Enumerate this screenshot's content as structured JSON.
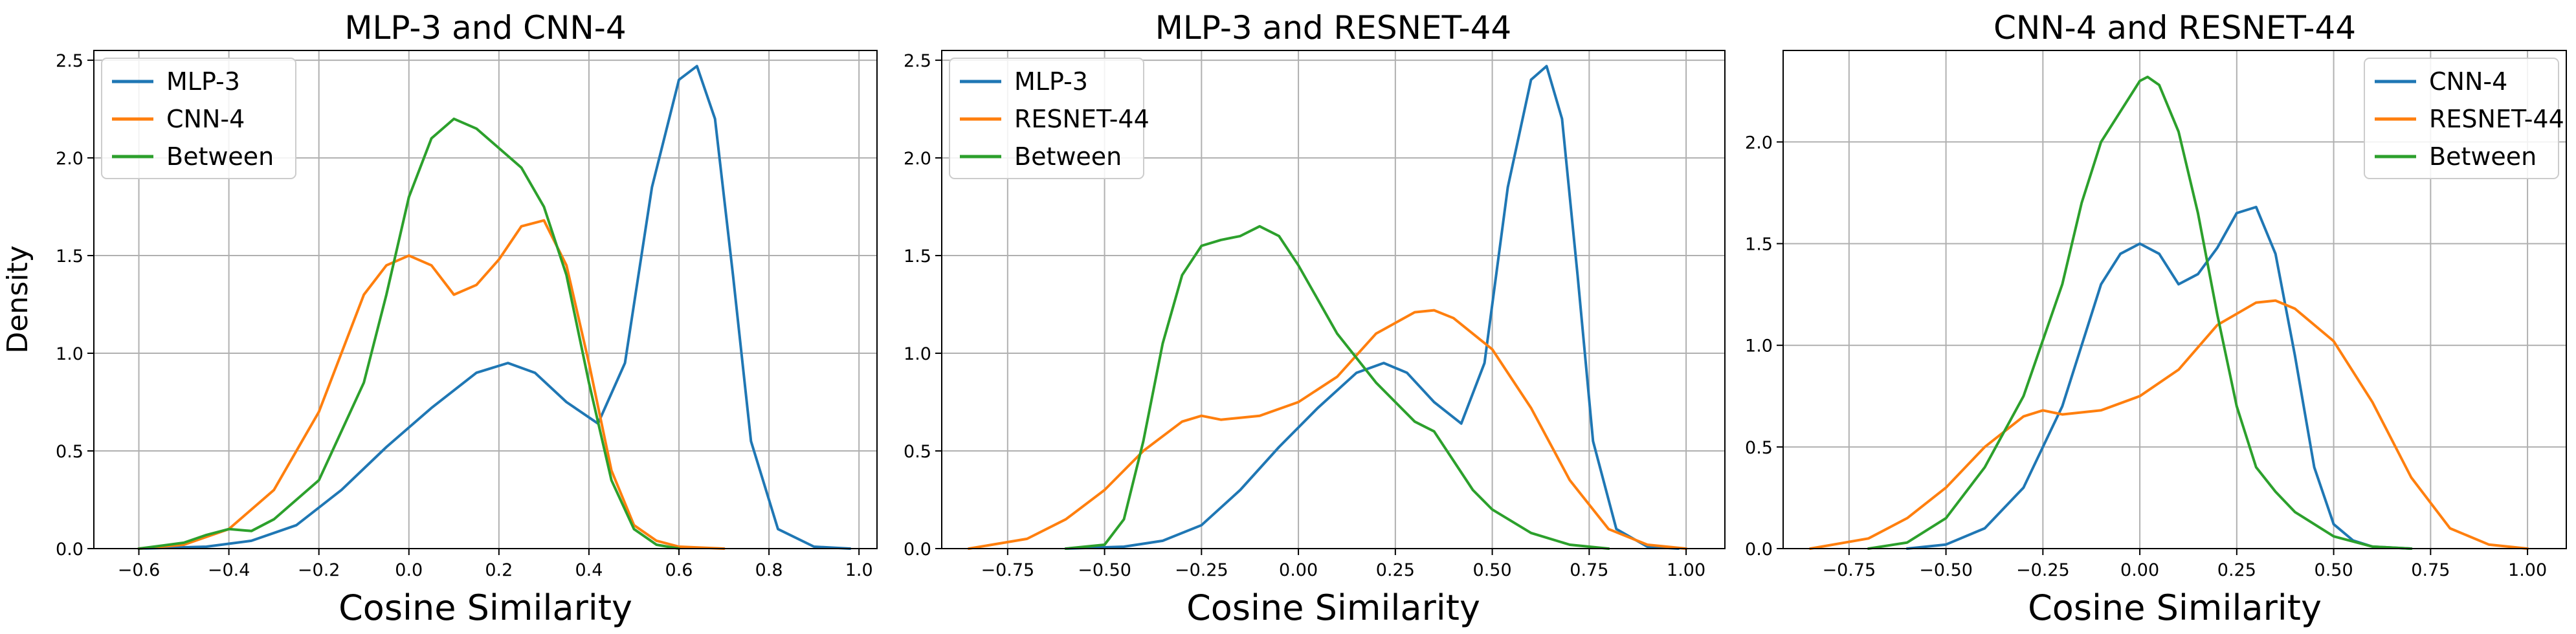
{
  "colors": {
    "blue": "#1f77b4",
    "orange": "#ff7f0e",
    "green": "#2ca02c"
  },
  "chart_data": [
    {
      "type": "line",
      "title": "MLP-3 and CNN-4",
      "xlabel": "Cosine Similarity",
      "ylabel": "Density",
      "xlim": [
        -0.7,
        1.04
      ],
      "ylim": [
        0,
        2.55
      ],
      "xticks": [
        -0.6,
        -0.4,
        -0.2,
        0.0,
        0.2,
        0.4,
        0.6,
        0.8,
        1.0
      ],
      "xtick_labels": [
        "−0.6",
        "−0.4",
        "−0.2",
        "0.0",
        "0.2",
        "0.4",
        "0.6",
        "0.8",
        "1.0"
      ],
      "yticks": [
        0.0,
        0.5,
        1.0,
        1.5,
        2.0,
        2.5
      ],
      "ytick_labels": [
        "0.0",
        "0.5",
        "1.0",
        "1.5",
        "2.0",
        "2.5"
      ],
      "grid": true,
      "legend_position": "top-left",
      "series": [
        {
          "name": "MLP-3",
          "color": "#1f77b4",
          "x": [
            -0.6,
            -0.45,
            -0.35,
            -0.25,
            -0.15,
            -0.05,
            0.05,
            0.15,
            0.22,
            0.28,
            0.35,
            0.42,
            0.48,
            0.54,
            0.6,
            0.64,
            0.68,
            0.72,
            0.76,
            0.82,
            0.9,
            0.98
          ],
          "y": [
            0.0,
            0.01,
            0.04,
            0.12,
            0.3,
            0.52,
            0.72,
            0.9,
            0.95,
            0.9,
            0.75,
            0.64,
            0.95,
            1.85,
            2.4,
            2.47,
            2.2,
            1.4,
            0.55,
            0.1,
            0.01,
            0.0
          ]
        },
        {
          "name": "CNN-4",
          "color": "#ff7f0e",
          "x": [
            -0.6,
            -0.5,
            -0.4,
            -0.3,
            -0.2,
            -0.1,
            -0.05,
            0.0,
            0.05,
            0.1,
            0.15,
            0.2,
            0.25,
            0.3,
            0.35,
            0.4,
            0.45,
            0.5,
            0.55,
            0.6,
            0.7
          ],
          "y": [
            0.0,
            0.02,
            0.1,
            0.3,
            0.7,
            1.3,
            1.45,
            1.5,
            1.45,
            1.3,
            1.35,
            1.48,
            1.65,
            1.68,
            1.45,
            0.95,
            0.4,
            0.12,
            0.04,
            0.01,
            0.0
          ]
        },
        {
          "name": "Between",
          "color": "#2ca02c",
          "x": [
            -0.6,
            -0.5,
            -0.45,
            -0.4,
            -0.35,
            -0.3,
            -0.2,
            -0.1,
            -0.05,
            0.0,
            0.05,
            0.1,
            0.15,
            0.2,
            0.25,
            0.3,
            0.35,
            0.4,
            0.45,
            0.5,
            0.55,
            0.6
          ],
          "y": [
            0.0,
            0.03,
            0.07,
            0.1,
            0.09,
            0.15,
            0.35,
            0.85,
            1.3,
            1.8,
            2.1,
            2.2,
            2.15,
            2.05,
            1.95,
            1.75,
            1.4,
            0.85,
            0.35,
            0.1,
            0.02,
            0.0
          ]
        }
      ]
    },
    {
      "type": "line",
      "title": "MLP-3 and RESNET-44",
      "xlabel": "Cosine Similarity",
      "ylabel": "",
      "xlim": [
        -0.92,
        1.1
      ],
      "ylim": [
        0,
        2.55
      ],
      "xticks": [
        -0.75,
        -0.5,
        -0.25,
        0.0,
        0.25,
        0.5,
        0.75,
        1.0
      ],
      "xtick_labels": [
        "−0.75",
        "−0.50",
        "−0.25",
        "0.00",
        "0.25",
        "0.50",
        "0.75",
        "1.00"
      ],
      "yticks": [
        0.0,
        0.5,
        1.0,
        1.5,
        2.0,
        2.5
      ],
      "ytick_labels": [
        "0.0",
        "0.5",
        "1.0",
        "1.5",
        "2.0",
        "2.5"
      ],
      "grid": true,
      "legend_position": "top-left",
      "series": [
        {
          "name": "MLP-3",
          "color": "#1f77b4",
          "x": [
            -0.6,
            -0.45,
            -0.35,
            -0.25,
            -0.15,
            -0.05,
            0.05,
            0.15,
            0.22,
            0.28,
            0.35,
            0.42,
            0.48,
            0.54,
            0.6,
            0.64,
            0.68,
            0.72,
            0.76,
            0.82,
            0.9,
            0.98
          ],
          "y": [
            0.0,
            0.01,
            0.04,
            0.12,
            0.3,
            0.52,
            0.72,
            0.9,
            0.95,
            0.9,
            0.75,
            0.64,
            0.95,
            1.85,
            2.4,
            2.47,
            2.2,
            1.4,
            0.55,
            0.1,
            0.01,
            0.0
          ]
        },
        {
          "name": "RESNET-44",
          "color": "#ff7f0e",
          "x": [
            -0.85,
            -0.7,
            -0.6,
            -0.5,
            -0.4,
            -0.3,
            -0.25,
            -0.2,
            -0.1,
            0.0,
            0.1,
            0.2,
            0.3,
            0.35,
            0.4,
            0.5,
            0.6,
            0.7,
            0.8,
            0.9,
            1.0
          ],
          "y": [
            0.0,
            0.05,
            0.15,
            0.3,
            0.5,
            0.65,
            0.68,
            0.66,
            0.68,
            0.75,
            0.88,
            1.1,
            1.21,
            1.22,
            1.18,
            1.02,
            0.72,
            0.35,
            0.1,
            0.02,
            0.0
          ]
        },
        {
          "name": "Between",
          "color": "#2ca02c",
          "x": [
            -0.6,
            -0.5,
            -0.45,
            -0.4,
            -0.35,
            -0.3,
            -0.25,
            -0.2,
            -0.15,
            -0.1,
            -0.05,
            0.0,
            0.1,
            0.2,
            0.3,
            0.35,
            0.4,
            0.45,
            0.5,
            0.6,
            0.7,
            0.8
          ],
          "y": [
            0.0,
            0.02,
            0.15,
            0.55,
            1.05,
            1.4,
            1.55,
            1.58,
            1.6,
            1.65,
            1.6,
            1.45,
            1.1,
            0.85,
            0.65,
            0.6,
            0.45,
            0.3,
            0.2,
            0.08,
            0.02,
            0.0
          ]
        }
      ]
    },
    {
      "type": "line",
      "title": "CNN-4 and RESNET-44",
      "xlabel": "Cosine Similarity",
      "ylabel": "",
      "xlim": [
        -0.92,
        1.1
      ],
      "ylim": [
        0,
        2.45
      ],
      "xticks": [
        -0.75,
        -0.5,
        -0.25,
        0.0,
        0.25,
        0.5,
        0.75,
        1.0
      ],
      "xtick_labels": [
        "−0.75",
        "−0.50",
        "−0.25",
        "0.00",
        "0.25",
        "0.50",
        "0.75",
        "1.00"
      ],
      "yticks": [
        0.0,
        0.5,
        1.0,
        1.5,
        2.0
      ],
      "ytick_labels": [
        "0.0",
        "0.5",
        "1.0",
        "1.5",
        "2.0"
      ],
      "grid": true,
      "legend_position": "top-right",
      "series": [
        {
          "name": "CNN-4",
          "color": "#1f77b4",
          "x": [
            -0.6,
            -0.5,
            -0.4,
            -0.3,
            -0.2,
            -0.1,
            -0.05,
            0.0,
            0.05,
            0.1,
            0.15,
            0.2,
            0.25,
            0.3,
            0.35,
            0.4,
            0.45,
            0.5,
            0.55,
            0.6,
            0.7
          ],
          "y": [
            0.0,
            0.02,
            0.1,
            0.3,
            0.7,
            1.3,
            1.45,
            1.5,
            1.45,
            1.3,
            1.35,
            1.48,
            1.65,
            1.68,
            1.45,
            0.95,
            0.4,
            0.12,
            0.04,
            0.01,
            0.0
          ]
        },
        {
          "name": "RESNET-44",
          "color": "#ff7f0e",
          "x": [
            -0.85,
            -0.7,
            -0.6,
            -0.5,
            -0.4,
            -0.3,
            -0.25,
            -0.2,
            -0.1,
            0.0,
            0.1,
            0.2,
            0.3,
            0.35,
            0.4,
            0.5,
            0.6,
            0.7,
            0.8,
            0.9,
            1.0
          ],
          "y": [
            0.0,
            0.05,
            0.15,
            0.3,
            0.5,
            0.65,
            0.68,
            0.66,
            0.68,
            0.75,
            0.88,
            1.1,
            1.21,
            1.22,
            1.18,
            1.02,
            0.72,
            0.35,
            0.1,
            0.02,
            0.0
          ]
        },
        {
          "name": "Between",
          "color": "#2ca02c",
          "x": [
            -0.7,
            -0.6,
            -0.5,
            -0.4,
            -0.3,
            -0.2,
            -0.15,
            -0.1,
            -0.05,
            0.0,
            0.02,
            0.05,
            0.1,
            0.15,
            0.2,
            0.25,
            0.3,
            0.35,
            0.4,
            0.5,
            0.6,
            0.7
          ],
          "y": [
            0.0,
            0.03,
            0.15,
            0.4,
            0.75,
            1.3,
            1.7,
            2.0,
            2.15,
            2.3,
            2.32,
            2.28,
            2.05,
            1.65,
            1.15,
            0.7,
            0.4,
            0.28,
            0.18,
            0.06,
            0.01,
            0.0
          ]
        }
      ]
    }
  ]
}
